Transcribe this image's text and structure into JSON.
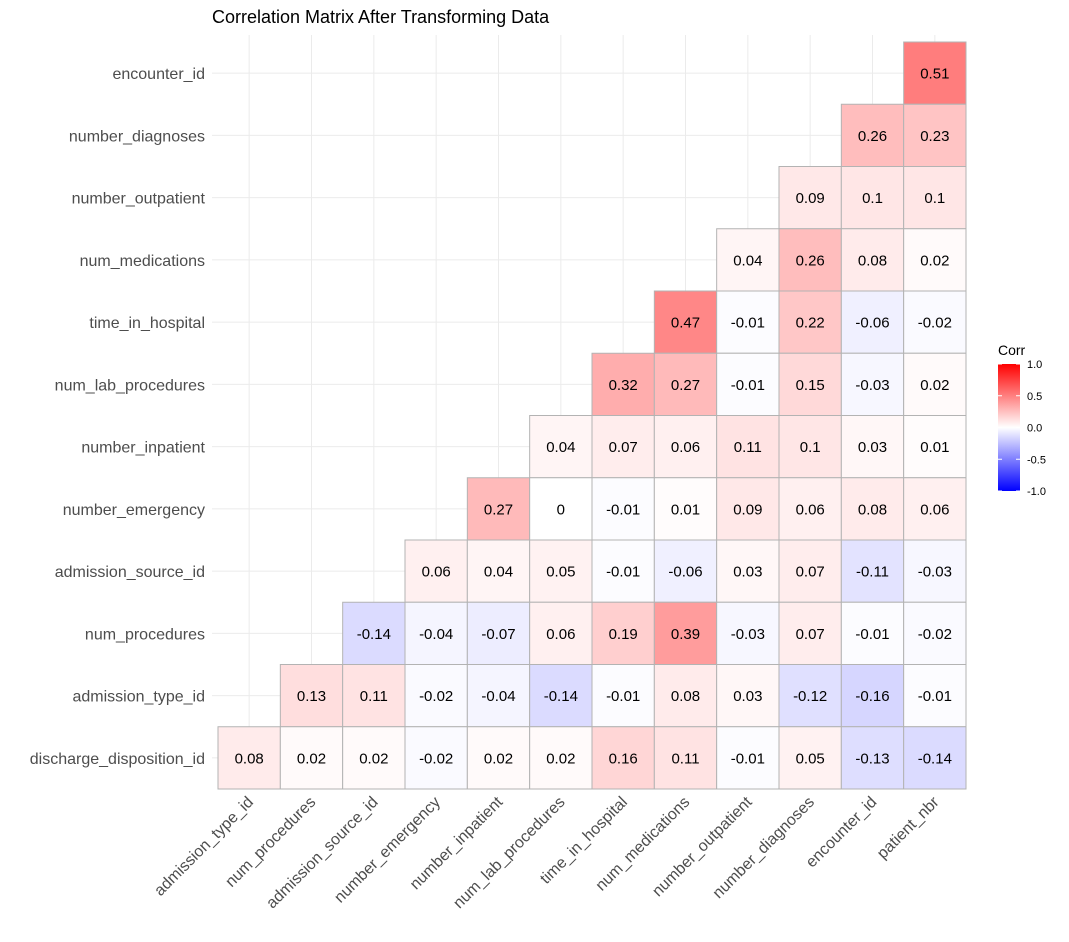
{
  "chart_data": {
    "type": "heatmap",
    "title": "Correlation Matrix After Transforming Data",
    "row_labels": [
      "encounter_id",
      "number_diagnoses",
      "number_outpatient",
      "num_medications",
      "time_in_hospital",
      "num_lab_procedures",
      "number_inpatient",
      "number_emergency",
      "admission_source_id",
      "num_procedures",
      "admission_type_id",
      "discharge_disposition_id"
    ],
    "col_labels": [
      "admission_type_id",
      "num_procedures",
      "admission_source_id",
      "number_emergency",
      "number_inpatient",
      "num_lab_procedures",
      "time_in_hospital",
      "num_medications",
      "number_outpatient",
      "number_diagnoses",
      "encounter_id",
      "patient_nbr"
    ],
    "values": [
      [
        null,
        null,
        null,
        null,
        null,
        null,
        null,
        null,
        null,
        null,
        null,
        0.51
      ],
      [
        null,
        null,
        null,
        null,
        null,
        null,
        null,
        null,
        null,
        null,
        0.26,
        0.23
      ],
      [
        null,
        null,
        null,
        null,
        null,
        null,
        null,
        null,
        null,
        0.09,
        0.1,
        0.1
      ],
      [
        null,
        null,
        null,
        null,
        null,
        null,
        null,
        null,
        0.04,
        0.26,
        0.08,
        0.02
      ],
      [
        null,
        null,
        null,
        null,
        null,
        null,
        null,
        0.47,
        -0.01,
        0.22,
        -0.06,
        -0.02
      ],
      [
        null,
        null,
        null,
        null,
        null,
        null,
        0.32,
        0.27,
        -0.01,
        0.15,
        -0.03,
        0.02
      ],
      [
        null,
        null,
        null,
        null,
        null,
        0.04,
        0.07,
        0.06,
        0.11,
        0.1,
        0.03,
        0.01
      ],
      [
        null,
        null,
        null,
        null,
        0.27,
        0,
        -0.01,
        0.01,
        0.09,
        0.06,
        0.08,
        0.06
      ],
      [
        null,
        null,
        null,
        0.06,
        0.04,
        0.05,
        -0.01,
        -0.06,
        0.03,
        0.07,
        -0.11,
        -0.03
      ],
      [
        null,
        null,
        -0.14,
        -0.04,
        -0.07,
        0.06,
        0.19,
        0.39,
        -0.03,
        0.07,
        -0.01,
        -0.02
      ],
      [
        null,
        0.13,
        0.11,
        -0.02,
        -0.04,
        -0.14,
        -0.01,
        0.08,
        0.03,
        -0.12,
        -0.16,
        -0.01
      ],
      [
        0.08,
        0.02,
        0.02,
        -0.02,
        0.02,
        0.02,
        0.16,
        0.11,
        -0.01,
        0.05,
        -0.13,
        -0.14
      ]
    ],
    "color_scale": {
      "low": "#0000ff",
      "mid": "#ffffff",
      "high": "#ff0000",
      "range": [
        -1,
        1
      ]
    },
    "legend": {
      "title": "Corr",
      "ticks": [
        "1.0",
        "0.5",
        "0.0",
        "-0.5",
        "-1.0"
      ],
      "tick_values": [
        1.0,
        0.5,
        0.0,
        -0.5,
        -1.0
      ],
      "placement": "right"
    },
    "grid": true,
    "cell_border_color": "#b3b3b3",
    "grid_color": "#ebebeb"
  }
}
